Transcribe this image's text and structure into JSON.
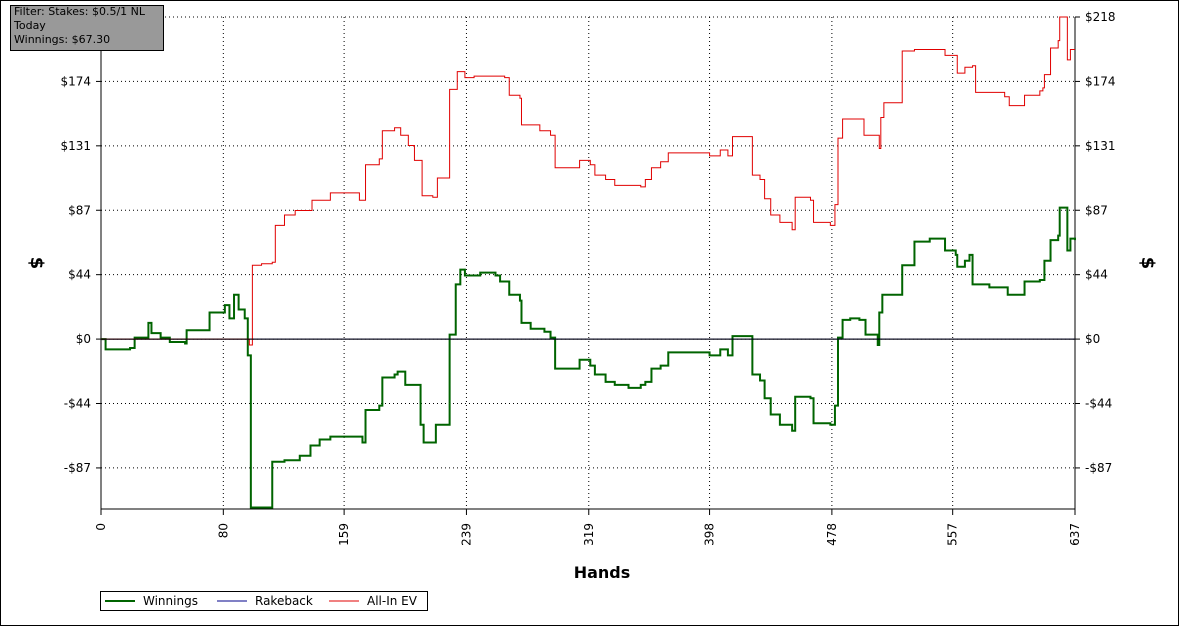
{
  "chart_data": {
    "type": "line",
    "filter_box": [
      "Filter: Stakes: $0.5/1 NL",
      "Today",
      "Winnings: $67.30"
    ],
    "x_label": "Hands",
    "y_label": "$",
    "xlim": [
      0,
      637
    ],
    "xticks": [
      0,
      80,
      159,
      239,
      319,
      398,
      478,
      557,
      637
    ],
    "ylim": [
      -115,
      218
    ],
    "yticks": [
      {
        "value": -87.2,
        "label": "-$87"
      },
      {
        "value": -43.6,
        "label": "-$44"
      },
      {
        "value": 0,
        "label": "$0"
      },
      {
        "value": 43.6,
        "label": "$44"
      },
      {
        "value": 87.2,
        "label": "$87"
      },
      {
        "value": 130.8,
        "label": "$131"
      },
      {
        "value": 174.4,
        "label": "$174"
      },
      {
        "value": 218,
        "label": "$218"
      }
    ],
    "grid": true,
    "series": [
      {
        "name": "Winnings",
        "color": "#006400",
        "x": [
          0,
          3,
          19,
          22,
          29,
          31,
          33,
          39,
          45,
          55,
          56,
          65,
          71,
          78,
          81,
          84,
          87,
          90,
          94,
          96,
          98,
          101,
          112,
          112,
          120,
          130,
          137,
          143,
          150,
          166,
          171,
          173,
          182,
          184,
          192,
          194,
          199,
          202,
          209,
          211,
          217,
          219,
          226,
          228,
          232,
          235,
          238,
          248,
          258,
          261,
          267,
          274,
          275,
          281,
          290,
          294,
          297,
          310,
          313,
          320,
          323,
          330,
          336,
          345,
          353,
          356,
          360,
          366,
          371,
          392,
          398,
          405,
          410,
          413,
          423,
          426,
          431,
          434,
          438,
          444,
          452,
          454,
          464,
          466,
          477,
          480,
          482,
          485,
          490,
          496,
          500,
          508,
          509,
          511,
          523,
          524,
          532,
          542,
          552,
          559,
          560,
          565,
          568,
          570,
          581,
          591,
          593,
          601,
          604,
          614,
          617,
          621,
          626,
          627,
          630,
          632,
          634,
          637
        ],
        "values": [
          0,
          -7,
          -6,
          1,
          1,
          11,
          4,
          1,
          -2,
          -3,
          6,
          6,
          18,
          18,
          23,
          14,
          30,
          20,
          14,
          -11,
          -114,
          -114,
          -114,
          -83,
          -82,
          -79,
          -72,
          -68,
          -66,
          -66,
          -70,
          -48,
          -45,
          -26,
          -24,
          -22,
          -31,
          -31,
          -58,
          -70,
          -70,
          -58,
          -58,
          3,
          37,
          47,
          43,
          45,
          43,
          39,
          30,
          26,
          11,
          7,
          5,
          1,
          -20,
          -20,
          -14,
          -18,
          -24,
          -29,
          -31,
          -33,
          -31,
          -29,
          -20,
          -18,
          -9,
          -9,
          -11,
          -7,
          -11,
          2,
          2,
          -24,
          -28,
          -40,
          -51,
          -58,
          -62,
          -39,
          -40,
          -57,
          -58,
          -45,
          1,
          13,
          14,
          13,
          3,
          -4,
          18,
          30,
          30,
          50,
          66,
          68,
          60,
          57,
          49,
          53,
          57,
          37,
          35,
          35,
          30,
          30,
          39,
          40,
          53,
          67,
          70,
          89,
          89,
          60,
          68,
          67
        ]
      },
      {
        "name": "Rakeback",
        "color": "#00008b",
        "x": [
          0,
          637
        ],
        "values": [
          0,
          0
        ]
      },
      {
        "name": "All-In EV",
        "color": "#e00000",
        "x": [
          0,
          97,
          99,
          105,
          112,
          114,
          120,
          127,
          134,
          138,
          150,
          166,
          169,
          173,
          182,
          184,
          192,
          196,
          201,
          205,
          210,
          217,
          220,
          226,
          228,
          233,
          238,
          244,
          264,
          267,
          274,
          275,
          287,
          294,
          297,
          310,
          313,
          320,
          323,
          330,
          336,
          353,
          356,
          360,
          366,
          371,
          392,
          398,
          405,
          410,
          413,
          423,
          426,
          431,
          434,
          438,
          444,
          452,
          454,
          464,
          466,
          477,
          480,
          482,
          485,
          496,
          499,
          509,
          510,
          512,
          523,
          524,
          532,
          542,
          552,
          560,
          565,
          570,
          572,
          591,
          594,
          601,
          604,
          614,
          616,
          617,
          621,
          626,
          627,
          630,
          632,
          634,
          637
        ],
        "values": [
          0,
          -4,
          50,
          51,
          52,
          77,
          84,
          87,
          87,
          94,
          99,
          99,
          94,
          118,
          122,
          141,
          143,
          138,
          131,
          121,
          97,
          96,
          109,
          109,
          169,
          181,
          177,
          178,
          177,
          165,
          163,
          145,
          141,
          138,
          116,
          116,
          121,
          118,
          111,
          108,
          104,
          103,
          108,
          116,
          120,
          126,
          126,
          124,
          128,
          124,
          137,
          137,
          111,
          108,
          95,
          84,
          79,
          74,
          96,
          94,
          79,
          77,
          91,
          136,
          149,
          149,
          138,
          129,
          150,
          160,
          160,
          195,
          196,
          196,
          192,
          180,
          184,
          185,
          167,
          164,
          158,
          158,
          165,
          168,
          170,
          179,
          197,
          202,
          218,
          218,
          189,
          196,
          196
        ]
      }
    ]
  }
}
